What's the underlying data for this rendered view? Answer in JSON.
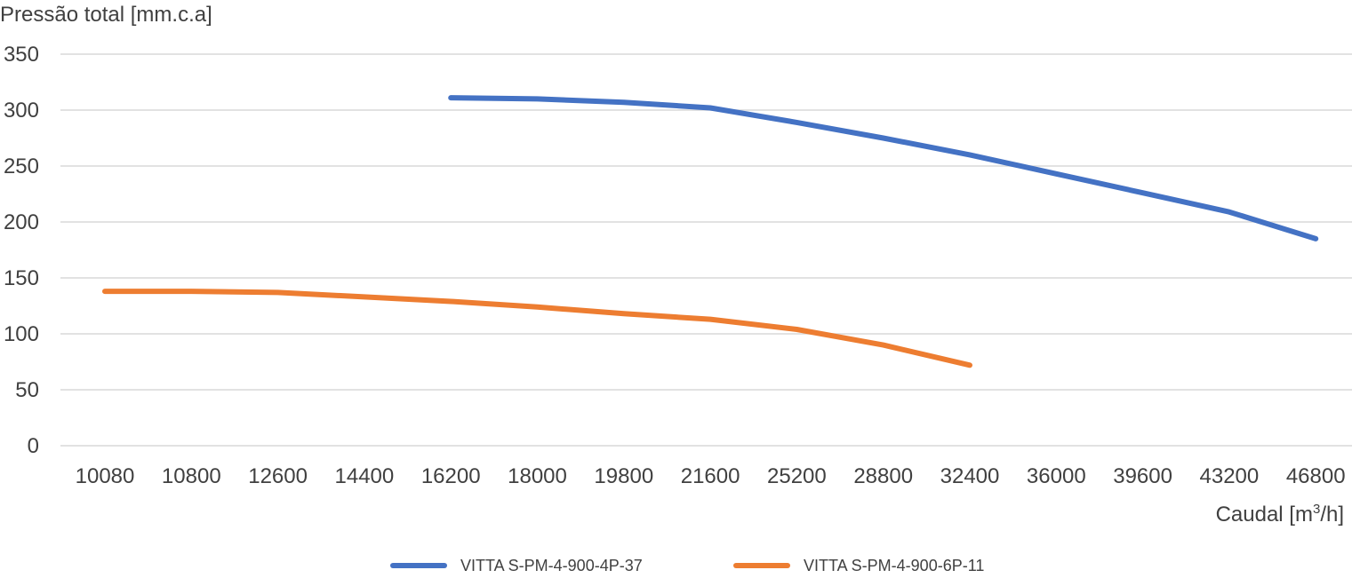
{
  "chart_data": {
    "type": "line",
    "ylabel": "Pressão total [mm.c.a]",
    "xlabel_prefix": "Caudal [m",
    "xlabel_sup": "3",
    "xlabel_suffix": "/h]",
    "categories": [
      "10080",
      "10800",
      "12600",
      "14400",
      "16200",
      "18000",
      "19800",
      "21600",
      "25200",
      "28800",
      "32400",
      "36000",
      "39600",
      "43200",
      "46800"
    ],
    "yticks": [
      "0",
      "50",
      "100",
      "150",
      "200",
      "250",
      "300",
      "350"
    ],
    "ylim": [
      0,
      350
    ],
    "grid": true,
    "legend_position": "bottom",
    "series": [
      {
        "name": "VITTA S-PM-4-900-4P-37",
        "color": "#4472C4",
        "values": [
          null,
          null,
          null,
          null,
          311,
          310,
          307,
          302,
          289,
          275,
          260,
          243,
          226,
          209,
          185
        ]
      },
      {
        "name": "VITTA S-PM-4-900-6P-11",
        "color": "#ED7D31",
        "values": [
          138,
          138,
          137,
          133,
          129,
          124,
          118,
          113,
          104,
          90,
          72,
          null,
          null,
          null,
          null
        ]
      }
    ]
  }
}
